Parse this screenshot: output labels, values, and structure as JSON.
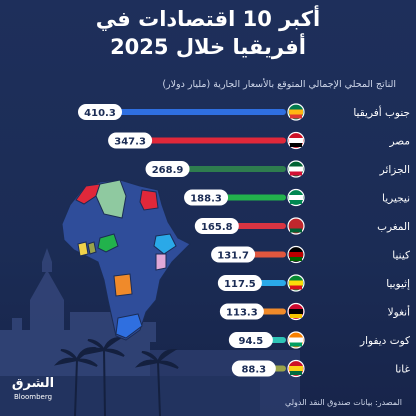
{
  "title_line1": "أكبر 10 اقتصادات في",
  "title_line2": "أفريقيا خلال 2025",
  "subtitle": "الناتج المحلي الإجمالي المتوقع بالأسعار الجارية (مليار دولار)",
  "source": "المصدر: بيانات صندوق النقد الدولي",
  "logo": {
    "arabic": "الشرق",
    "english": "Bloomberg"
  },
  "colors": {
    "background": "#1b2c55",
    "map_base": "#2f4d9a",
    "label_bg": "#ffffff"
  },
  "chart_data": {
    "type": "bar",
    "orientation": "horizontal",
    "title": "أكبر 10 اقتصادات في أفريقيا خلال 2025",
    "subtitle": "الناتج المحلي الإجمالي المتوقع بالأسعار الجارية (مليار دولار)",
    "categories": [
      "جنوب أفريقيا",
      "مصر",
      "الجزائر",
      "نيجيريا",
      "المغرب",
      "كينيا",
      "إثيوبيا",
      "أنغولا",
      "كوت ديفوار",
      "غانا"
    ],
    "values": [
      410.3,
      347.3,
      268.9,
      188.3,
      165.8,
      131.7,
      117.5,
      113.3,
      94.5,
      88.3
    ],
    "value_labels": [
      "410.3",
      "347.3",
      "268.9",
      "188.3",
      "165.8",
      "131.7",
      "117.5",
      "113.3",
      "94.5",
      "88.3"
    ],
    "bar_colors": [
      "#2f6fe0",
      "#e0283a",
      "#2e7d4e",
      "#22b24c",
      "#d93442",
      "#e0573e",
      "#2aa9e8",
      "#f08a2a",
      "#2ec4b6",
      "#9aa34a"
    ],
    "flag_icons": [
      "south-africa-flag-icon",
      "egypt-flag-icon",
      "algeria-flag-icon",
      "nigeria-flag-icon",
      "morocco-flag-icon",
      "kenya-flag-icon",
      "ethiopia-flag-icon",
      "angola-flag-icon",
      "ivory-coast-flag-icon",
      "ghana-flag-icon"
    ],
    "xlim": [
      0,
      420
    ],
    "grid": false,
    "legend": "none"
  }
}
